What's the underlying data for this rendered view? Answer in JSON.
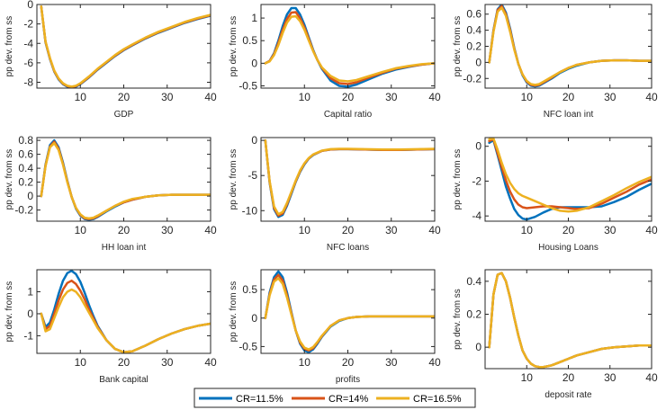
{
  "colors": {
    "cr115": "#0072BD",
    "cr14": "#D95319",
    "cr165": "#EDB120",
    "axis": "#262626"
  },
  "legend": {
    "items": [
      "CR=11.5%",
      "CR=14%",
      "CR=16.5%"
    ]
  },
  "chart_data": [
    {
      "type": "line",
      "xlabel": "GDP",
      "ylabel": "pp dev. from ss",
      "ylim": [
        -8.6,
        0
      ],
      "yticks": [
        0,
        -2,
        -4,
        -6,
        -8
      ],
      "xticks": [
        10,
        20,
        30,
        40
      ],
      "xlim": [
        0,
        40
      ],
      "x": [
        1,
        2,
        3,
        4,
        5,
        6,
        7,
        8,
        9,
        10,
        12,
        14,
        16,
        18,
        20,
        22,
        25,
        28,
        31,
        34,
        37,
        40
      ],
      "series": [
        {
          "name": "CR=11.5%",
          "values": [
            -0.2,
            -3.9,
            -5.6,
            -6.9,
            -7.7,
            -8.2,
            -8.45,
            -8.55,
            -8.45,
            -8.2,
            -7.5,
            -6.7,
            -6.0,
            -5.3,
            -4.7,
            -4.2,
            -3.5,
            -2.9,
            -2.4,
            -1.9,
            -1.5,
            -1.15
          ]
        },
        {
          "name": "CR=14%",
          "values": [
            -0.2,
            -3.85,
            -5.55,
            -6.85,
            -7.65,
            -8.15,
            -8.4,
            -8.5,
            -8.4,
            -8.15,
            -7.45,
            -6.65,
            -5.95,
            -5.25,
            -4.65,
            -4.15,
            -3.45,
            -2.85,
            -2.35,
            -1.85,
            -1.45,
            -1.1
          ]
        },
        {
          "name": "CR=16.5%",
          "values": [
            -0.2,
            -3.8,
            -5.5,
            -6.8,
            -7.6,
            -8.1,
            -8.35,
            -8.45,
            -8.35,
            -8.1,
            -7.4,
            -6.6,
            -5.9,
            -5.2,
            -4.6,
            -4.1,
            -3.4,
            -2.8,
            -2.3,
            -1.8,
            -1.4,
            -1.05
          ]
        }
      ]
    },
    {
      "type": "line",
      "xlabel": "Capital ratio",
      "ylabel": "pp dev. from ss",
      "ylim": [
        -0.55,
        1.3
      ],
      "yticks": [
        1,
        0.5,
        0,
        -0.5
      ],
      "xticks": [
        10,
        20,
        30,
        40
      ],
      "xlim": [
        0,
        40
      ],
      "x": [
        1,
        2,
        3,
        4,
        5,
        6,
        7,
        8,
        9,
        10,
        11,
        12,
        13,
        14,
        16,
        18,
        20,
        22,
        25,
        28,
        31,
        34,
        37,
        40
      ],
      "series": [
        {
          "name": "CR=11.5%",
          "values": [
            0,
            0.05,
            0.22,
            0.5,
            0.82,
            1.08,
            1.22,
            1.22,
            1.08,
            0.85,
            0.57,
            0.3,
            0.07,
            -0.12,
            -0.38,
            -0.5,
            -0.52,
            -0.47,
            -0.35,
            -0.23,
            -0.14,
            -0.08,
            -0.03,
            0
          ]
        },
        {
          "name": "CR=14%",
          "values": [
            0,
            0.05,
            0.2,
            0.45,
            0.74,
            0.98,
            1.12,
            1.13,
            1.0,
            0.79,
            0.54,
            0.28,
            0.07,
            -0.1,
            -0.33,
            -0.44,
            -0.46,
            -0.42,
            -0.31,
            -0.21,
            -0.12,
            -0.07,
            -0.03,
            0
          ]
        },
        {
          "name": "CR=16.5%",
          "values": [
            0,
            0.04,
            0.18,
            0.4,
            0.67,
            0.9,
            1.03,
            1.04,
            0.93,
            0.74,
            0.5,
            0.27,
            0.07,
            -0.09,
            -0.28,
            -0.38,
            -0.4,
            -0.37,
            -0.28,
            -0.19,
            -0.11,
            -0.06,
            -0.02,
            0
          ]
        }
      ]
    },
    {
      "type": "line",
      "xlabel": "NFC loan int",
      "ylabel": "pp dev. from ss",
      "ylim": [
        -0.32,
        0.72
      ],
      "yticks": [
        0.6,
        0.4,
        0.2,
        0,
        -0.2
      ],
      "xticks": [
        10,
        20,
        30,
        40
      ],
      "xlim": [
        0,
        40
      ],
      "x": [
        1,
        2,
        3,
        4,
        5,
        6,
        7,
        8,
        9,
        10,
        11,
        12,
        13,
        14,
        16,
        18,
        20,
        22,
        25,
        28,
        31,
        34,
        37,
        40
      ],
      "series": [
        {
          "name": "CR=11.5%",
          "values": [
            0,
            0.4,
            0.66,
            0.72,
            0.62,
            0.42,
            0.18,
            -0.02,
            -0.16,
            -0.25,
            -0.29,
            -0.3,
            -0.29,
            -0.26,
            -0.2,
            -0.13,
            -0.08,
            -0.04,
            0,
            0.02,
            0.025,
            0.025,
            0.02,
            0.02
          ]
        },
        {
          "name": "CR=14%",
          "values": [
            0,
            0.39,
            0.65,
            0.7,
            0.6,
            0.4,
            0.17,
            -0.02,
            -0.15,
            -0.24,
            -0.28,
            -0.29,
            -0.28,
            -0.25,
            -0.19,
            -0.12,
            -0.07,
            -0.03,
            0,
            0.02,
            0.025,
            0.025,
            0.02,
            0.02
          ]
        },
        {
          "name": "CR=16.5%",
          "values": [
            0,
            0.38,
            0.63,
            0.68,
            0.58,
            0.38,
            0.16,
            -0.02,
            -0.15,
            -0.23,
            -0.27,
            -0.28,
            -0.27,
            -0.24,
            -0.18,
            -0.12,
            -0.07,
            -0.03,
            0,
            0.02,
            0.025,
            0.025,
            0.02,
            0.02
          ]
        }
      ]
    },
    {
      "type": "line",
      "xlabel": "HH loan int",
      "ylabel": "pp dev. from ss",
      "ylim": [
        -0.36,
        0.84
      ],
      "yticks": [
        0.8,
        0.6,
        0.4,
        0.2,
        0,
        -0.2
      ],
      "xticks": [
        10,
        20,
        30,
        40
      ],
      "xlim": [
        0,
        40
      ],
      "x": [
        1,
        2,
        3,
        4,
        5,
        6,
        7,
        8,
        9,
        10,
        11,
        12,
        13,
        14,
        16,
        18,
        20,
        22,
        25,
        28,
        31,
        34,
        37,
        40
      ],
      "series": [
        {
          "name": "CR=11.5%",
          "values": [
            0,
            0.45,
            0.73,
            0.8,
            0.7,
            0.48,
            0.22,
            -0.01,
            -0.18,
            -0.28,
            -0.33,
            -0.34,
            -0.33,
            -0.3,
            -0.22,
            -0.15,
            -0.09,
            -0.05,
            -0.01,
            0.01,
            0.02,
            0.02,
            0.02,
            0.02
          ]
        },
        {
          "name": "CR=14%",
          "values": [
            0,
            0.44,
            0.71,
            0.78,
            0.68,
            0.46,
            0.21,
            -0.01,
            -0.17,
            -0.27,
            -0.32,
            -0.33,
            -0.32,
            -0.29,
            -0.21,
            -0.14,
            -0.09,
            -0.05,
            -0.01,
            0.01,
            0.02,
            0.02,
            0.02,
            0.02
          ]
        },
        {
          "name": "CR=16.5%",
          "values": [
            0,
            0.43,
            0.7,
            0.76,
            0.66,
            0.45,
            0.2,
            -0.01,
            -0.17,
            -0.26,
            -0.31,
            -0.32,
            -0.31,
            -0.28,
            -0.21,
            -0.14,
            -0.08,
            -0.04,
            -0.01,
            0.01,
            0.02,
            0.02,
            0.02,
            0.02
          ]
        }
      ]
    },
    {
      "type": "line",
      "xlabel": "NFC loans",
      "ylabel": "pp dev. from ss",
      "ylim": [
        -11.5,
        0.4
      ],
      "yticks": [
        0,
        -5,
        -10
      ],
      "xticks": [
        10,
        20,
        30,
        40
      ],
      "xlim": [
        0,
        40
      ],
      "x": [
        1,
        2,
        3,
        4,
        5,
        6,
        7,
        8,
        9,
        10,
        11,
        12,
        14,
        16,
        18,
        20,
        24,
        28,
        32,
        36,
        40
      ],
      "series": [
        {
          "name": "CR=11.5%",
          "values": [
            0,
            -6.0,
            -9.8,
            -10.9,
            -10.6,
            -9.3,
            -7.6,
            -5.9,
            -4.5,
            -3.4,
            -2.6,
            -2.1,
            -1.5,
            -1.3,
            -1.25,
            -1.25,
            -1.3,
            -1.35,
            -1.35,
            -1.3,
            -1.25
          ]
        },
        {
          "name": "CR=14%",
          "values": [
            0,
            -5.9,
            -9.6,
            -10.7,
            -10.4,
            -9.1,
            -7.4,
            -5.8,
            -4.4,
            -3.3,
            -2.55,
            -2.05,
            -1.5,
            -1.3,
            -1.25,
            -1.25,
            -1.3,
            -1.35,
            -1.35,
            -1.3,
            -1.25
          ]
        },
        {
          "name": "CR=16.5%",
          "values": [
            0,
            -5.8,
            -9.4,
            -10.5,
            -10.2,
            -8.9,
            -7.3,
            -5.7,
            -4.3,
            -3.25,
            -2.5,
            -2.0,
            -1.45,
            -1.25,
            -1.2,
            -1.2,
            -1.25,
            -1.3,
            -1.3,
            -1.25,
            -1.2
          ]
        }
      ]
    },
    {
      "type": "line",
      "xlabel": "Housing Loans",
      "ylabel": "pp dev. from ss",
      "ylim": [
        -4.3,
        0.5
      ],
      "yticks": [
        0,
        -2,
        -4
      ],
      "xticks": [
        10,
        20,
        30,
        40
      ],
      "xlim": [
        0,
        40
      ],
      "x": [
        1,
        2,
        3,
        4,
        5,
        6,
        7,
        8,
        9,
        10,
        12,
        14,
        16,
        18,
        20,
        22,
        25,
        28,
        31,
        34,
        37,
        40
      ],
      "series": [
        {
          "name": "CR=11.5%",
          "values": [
            0.2,
            0.35,
            -0.5,
            -1.4,
            -2.3,
            -3.0,
            -3.6,
            -3.95,
            -4.15,
            -4.2,
            -4.05,
            -3.8,
            -3.6,
            -3.5,
            -3.5,
            -3.5,
            -3.5,
            -3.45,
            -3.2,
            -2.9,
            -2.5,
            -2.15
          ]
        },
        {
          "name": "CR=14%",
          "values": [
            0.3,
            0.4,
            -0.4,
            -1.2,
            -1.95,
            -2.6,
            -3.05,
            -3.35,
            -3.5,
            -3.55,
            -3.5,
            -3.45,
            -3.45,
            -3.5,
            -3.55,
            -3.6,
            -3.55,
            -3.3,
            -2.95,
            -2.6,
            -2.2,
            -1.9
          ]
        },
        {
          "name": "CR=16.5%",
          "values": [
            0.4,
            0.45,
            -0.2,
            -0.95,
            -1.6,
            -2.1,
            -2.45,
            -2.7,
            -2.85,
            -2.95,
            -3.15,
            -3.35,
            -3.55,
            -3.7,
            -3.75,
            -3.7,
            -3.5,
            -3.15,
            -2.8,
            -2.4,
            -2.05,
            -1.75
          ]
        }
      ]
    },
    {
      "type": "line",
      "xlabel": "Bank capital",
      "ylabel": "pp dev. from ss",
      "ylim": [
        -1.8,
        2.0
      ],
      "yticks": [
        1,
        0,
        -1
      ],
      "xticks": [
        10,
        20,
        30,
        40
      ],
      "xlim": [
        0,
        40
      ],
      "x": [
        1,
        2,
        3,
        4,
        5,
        6,
        7,
        8,
        9,
        10,
        11,
        12,
        13,
        14,
        16,
        18,
        20,
        22,
        25,
        28,
        31,
        34,
        37,
        40
      ],
      "series": [
        {
          "name": "CR=11.5%",
          "values": [
            0,
            -0.6,
            -0.4,
            0.2,
            0.9,
            1.5,
            1.85,
            1.95,
            1.8,
            1.45,
            0.95,
            0.4,
            -0.1,
            -0.55,
            -1.2,
            -1.6,
            -1.75,
            -1.7,
            -1.45,
            -1.15,
            -0.9,
            -0.7,
            -0.55,
            -0.45
          ]
        },
        {
          "name": "CR=14%",
          "values": [
            0,
            -0.7,
            -0.55,
            0.0,
            0.6,
            1.1,
            1.4,
            1.5,
            1.35,
            1.05,
            0.65,
            0.2,
            -0.2,
            -0.6,
            -1.2,
            -1.6,
            -1.75,
            -1.7,
            -1.45,
            -1.15,
            -0.9,
            -0.7,
            -0.55,
            -0.45
          ]
        },
        {
          "name": "CR=16.5%",
          "values": [
            0,
            -0.8,
            -0.7,
            -0.2,
            0.3,
            0.75,
            1.0,
            1.1,
            1.0,
            0.75,
            0.4,
            0.05,
            -0.3,
            -0.65,
            -1.2,
            -1.6,
            -1.75,
            -1.7,
            -1.45,
            -1.15,
            -0.9,
            -0.7,
            -0.55,
            -0.45
          ]
        }
      ]
    },
    {
      "type": "line",
      "xlabel": "profits",
      "ylabel": "pp dev. from ss",
      "ylim": [
        -0.62,
        0.85
      ],
      "yticks": [
        0.5,
        0,
        -0.5
      ],
      "xticks": [
        10,
        20,
        30,
        40
      ],
      "xlim": [
        0,
        40
      ],
      "x": [
        1,
        2,
        3,
        4,
        5,
        6,
        7,
        8,
        9,
        10,
        11,
        12,
        13,
        14,
        16,
        18,
        20,
        22,
        25,
        28,
        31,
        34,
        37,
        40
      ],
      "series": [
        {
          "name": "CR=11.5%",
          "values": [
            0,
            0.45,
            0.72,
            0.82,
            0.72,
            0.45,
            0.1,
            -0.22,
            -0.45,
            -0.57,
            -0.6,
            -0.55,
            -0.45,
            -0.33,
            -0.15,
            -0.05,
            0,
            0.02,
            0.03,
            0.03,
            0.03,
            0.03,
            0.03,
            0.03
          ]
        },
        {
          "name": "CR=14%",
          "values": [
            0,
            0.42,
            0.68,
            0.76,
            0.66,
            0.4,
            0.08,
            -0.22,
            -0.43,
            -0.54,
            -0.57,
            -0.53,
            -0.43,
            -0.32,
            -0.14,
            -0.04,
            0,
            0.02,
            0.03,
            0.03,
            0.03,
            0.03,
            0.03,
            0.03
          ]
        },
        {
          "name": "CR=16.5%",
          "values": [
            0,
            0.4,
            0.64,
            0.7,
            0.6,
            0.36,
            0.06,
            -0.22,
            -0.41,
            -0.52,
            -0.55,
            -0.51,
            -0.42,
            -0.31,
            -0.14,
            -0.04,
            0,
            0.02,
            0.03,
            0.03,
            0.03,
            0.03,
            0.03,
            0.03
          ]
        }
      ]
    },
    {
      "type": "line",
      "xlabel": "deposit rate",
      "ylabel": "pp dev. from ss",
      "ylim": [
        -0.13,
        0.47
      ],
      "yticks": [
        0.4,
        0.2,
        0
      ],
      "xticks": [
        10,
        20,
        30,
        40
      ],
      "xlim": [
        0,
        40
      ],
      "x": [
        1,
        2,
        3,
        4,
        5,
        6,
        7,
        8,
        9,
        10,
        11,
        12,
        13,
        14,
        15,
        16,
        18,
        20,
        22,
        25,
        28,
        31,
        34,
        37,
        40
      ],
      "series": [
        {
          "name": "CR=11.5%",
          "values": [
            0,
            0.32,
            0.44,
            0.45,
            0.4,
            0.3,
            0.18,
            0.07,
            -0.02,
            -0.07,
            -0.1,
            -0.115,
            -0.12,
            -0.12,
            -0.115,
            -0.11,
            -0.09,
            -0.07,
            -0.05,
            -0.03,
            -0.01,
            0,
            0.005,
            0.01,
            0.01
          ]
        },
        {
          "name": "CR=14%",
          "values": [
            0,
            0.32,
            0.44,
            0.45,
            0.4,
            0.3,
            0.18,
            0.07,
            -0.02,
            -0.07,
            -0.1,
            -0.115,
            -0.12,
            -0.12,
            -0.115,
            -0.11,
            -0.09,
            -0.07,
            -0.05,
            -0.03,
            -0.01,
            0,
            0.005,
            0.01,
            0.01
          ]
        },
        {
          "name": "CR=16.5%",
          "values": [
            0,
            0.32,
            0.44,
            0.45,
            0.4,
            0.3,
            0.18,
            0.07,
            -0.02,
            -0.07,
            -0.1,
            -0.115,
            -0.12,
            -0.12,
            -0.115,
            -0.11,
            -0.09,
            -0.07,
            -0.05,
            -0.03,
            -0.01,
            0,
            0.005,
            0.01,
            0.01
          ]
        }
      ]
    }
  ]
}
